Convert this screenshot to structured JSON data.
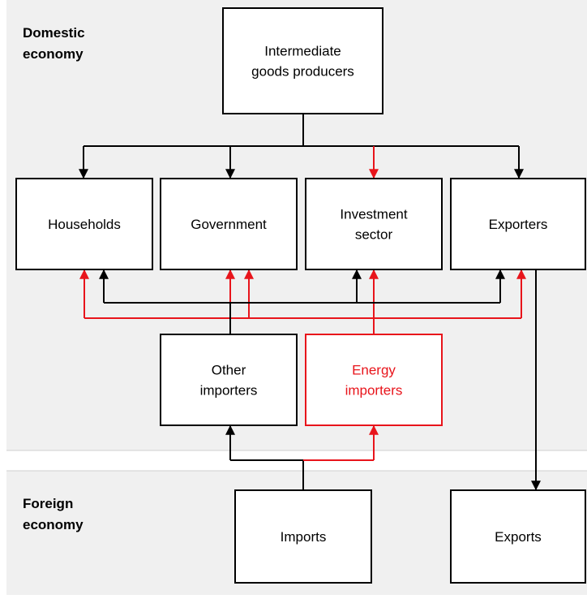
{
  "regions": {
    "domestic": [
      "Domestic",
      "economy"
    ],
    "foreign": [
      "Foreign",
      "economy"
    ]
  },
  "nodes": [
    {
      "label": [
        "Intermediate",
        "goods  producers"
      ]
    },
    {
      "label": [
        "Households"
      ]
    },
    {
      "label": [
        "Government"
      ]
    },
    {
      "label": [
        "Investment",
        "sector"
      ]
    },
    {
      "label": [
        "Exporters"
      ]
    },
    {
      "label": [
        "Other",
        "importers"
      ]
    },
    {
      "label": [
        "Energy",
        "importers"
      ]
    },
    {
      "label": [
        "Imports"
      ]
    },
    {
      "label": [
        "Exports"
      ]
    }
  ]
}
